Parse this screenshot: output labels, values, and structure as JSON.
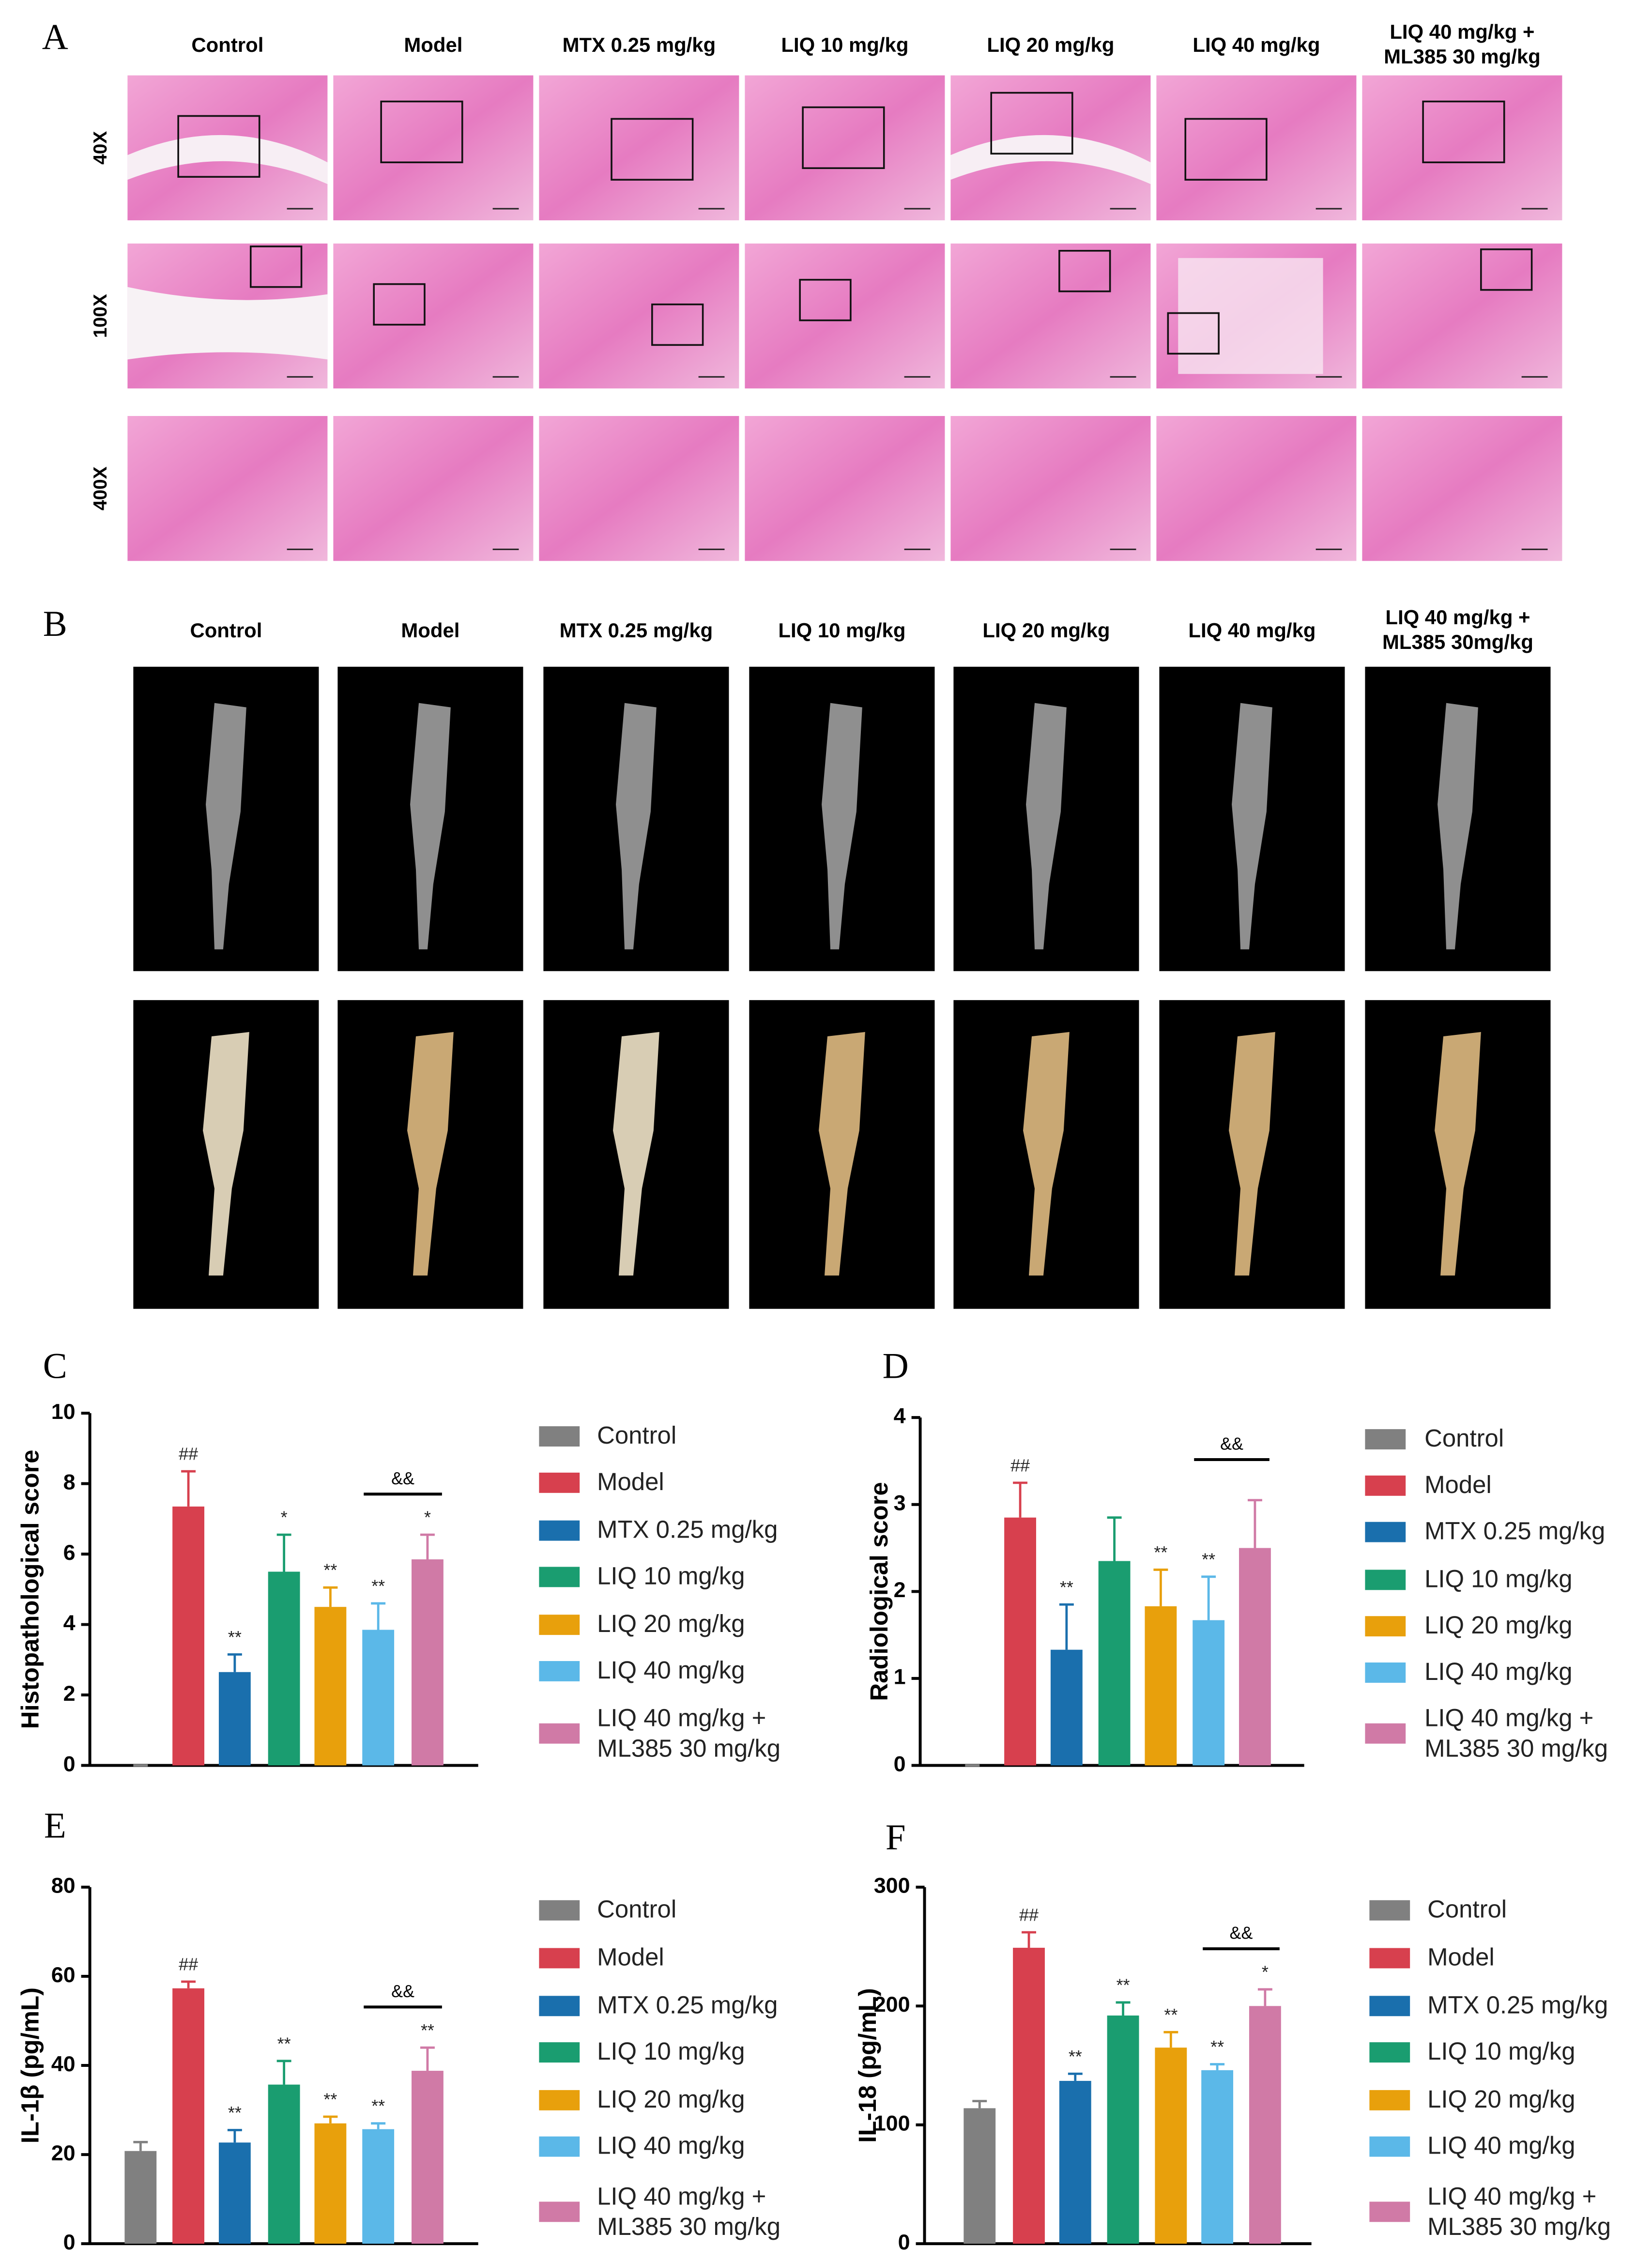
{
  "figure": {
    "panels": [
      "A",
      "B",
      "C",
      "D",
      "E",
      "F"
    ],
    "histology": {
      "columns": [
        [
          "Control"
        ],
        [
          "Model"
        ],
        [
          "MTX 0.25 mg/kg"
        ],
        [
          "LIQ 10 mg/kg"
        ],
        [
          "LIQ 20 mg/kg"
        ],
        [
          "LIQ 40 mg/kg"
        ],
        [
          "LIQ 40 mg/kg +",
          "ML385 30 mg/kg"
        ]
      ],
      "rows": [
        "40X",
        "100X",
        "400X"
      ]
    },
    "ct": {
      "columns": [
        [
          "Control"
        ],
        [
          "Model"
        ],
        [
          "MTX 0.25 mg/kg"
        ],
        [
          "LIQ 10 mg/kg"
        ],
        [
          "LIQ 20 mg/kg"
        ],
        [
          "LIQ 40 mg/kg"
        ],
        [
          "LIQ 40 mg/kg +",
          "ML385 30mg/kg"
        ]
      ]
    }
  },
  "chart_data": [
    {
      "type": "bar",
      "y_label": "Histopathological score",
      "categories": [
        "Control",
        "Model",
        "MTX 0.25 mg/kg",
        "LIQ 10 mg/kg",
        "LIQ 20 mg/kg",
        "LIQ 40 mg/kg",
        "LIQ 40 mg/kg + ML385 30 mg/kg"
      ],
      "colors": [
        "#808080",
        "#d7404e",
        "#1a6fad",
        "#1a9d70",
        "#e8a00c",
        "#5bb8e8",
        "#d07aa6"
      ],
      "values": [
        0,
        7.35,
        2.65,
        5.5,
        4.5,
        3.85,
        5.85
      ],
      "errors": [
        0,
        1.0,
        0.5,
        1.05,
        0.55,
        0.75,
        0.7
      ],
      "annotations": [
        null,
        "##",
        "**",
        "*",
        "**",
        "**",
        "*"
      ],
      "bracket_label": "&&",
      "ylim": [
        0,
        10
      ],
      "yticks": [
        0,
        2,
        4,
        6,
        8,
        10
      ],
      "legend": "right"
    },
    {
      "type": "bar",
      "y_label": "Radiological score",
      "categories": [
        "Control",
        "Model",
        "MTX 0.25 mg/kg",
        "LIQ 10 mg/kg",
        "LIQ 20 mg/kg",
        "LIQ 40 mg/kg",
        "LIQ 40 mg/kg + ML385 30 mg/kg"
      ],
      "colors": [
        "#808080",
        "#d7404e",
        "#1a6fad",
        "#1a9d70",
        "#e8a00c",
        "#5bb8e8",
        "#d07aa6"
      ],
      "values": [
        0,
        2.85,
        1.33,
        2.35,
        1.83,
        1.67,
        2.5
      ],
      "errors": [
        0,
        0.4,
        0.52,
        0.5,
        0.42,
        0.5,
        0.55
      ],
      "annotations": [
        null,
        "##",
        "**",
        null,
        "**",
        "**",
        null
      ],
      "bracket_label": "&&",
      "ylim": [
        0,
        4
      ],
      "yticks": [
        0,
        1,
        2,
        3,
        4
      ],
      "legend": "right"
    },
    {
      "type": "bar",
      "y_label": "IL-1β (pg/mL)",
      "categories": [
        "Control",
        "Model",
        "MTX 0.25 mg/kg",
        "LIQ 10 mg/kg",
        "LIQ 20 mg/kg",
        "LIQ 40 mg/kg",
        "LIQ 40 mg/kg + ML385 30 mg/kg"
      ],
      "colors": [
        "#808080",
        "#d7404e",
        "#1a6fad",
        "#1a9d70",
        "#e8a00c",
        "#5bb8e8",
        "#d07aa6"
      ],
      "values": [
        20.8,
        57.3,
        22.7,
        35.7,
        27,
        25.7,
        38.8
      ],
      "errors": [
        2,
        1.5,
        2.8,
        5.3,
        1.5,
        1.3,
        5.2
      ],
      "annotations": [
        null,
        "##",
        "**",
        "**",
        "**",
        "**",
        "**"
      ],
      "bracket_label": "&&",
      "ylim": [
        0,
        80
      ],
      "yticks": [
        0,
        20,
        40,
        60,
        80
      ],
      "legend": "right"
    },
    {
      "type": "bar",
      "y_label": "IL-18 (pg/mL)",
      "categories": [
        "Control",
        "Model",
        "MTX 0.25 mg/kg",
        "LIQ 10 mg/kg",
        "LIQ 20 mg/kg",
        "LIQ 40 mg/kg",
        "LIQ 40 mg/kg + ML385 30 mg/kg"
      ],
      "colors": [
        "#808080",
        "#d7404e",
        "#1a6fad",
        "#1a9d70",
        "#e8a00c",
        "#5bb8e8",
        "#d07aa6"
      ],
      "values": [
        114,
        249,
        137,
        192,
        165,
        146,
        200
      ],
      "errors": [
        6,
        13,
        6,
        11,
        13,
        5,
        14
      ],
      "annotations": [
        null,
        "##",
        "**",
        "**",
        "**",
        "**",
        "*"
      ],
      "bracket_label": "&&",
      "ylim": [
        0,
        300
      ],
      "yticks": [
        0,
        100,
        200,
        300
      ],
      "legend": "right"
    }
  ]
}
